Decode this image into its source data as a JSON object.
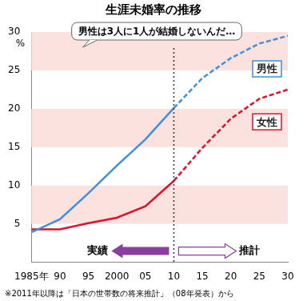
{
  "chart_data": {
    "type": "line",
    "title": "生涯未婚率の推移",
    "categories": [
      "1985年",
      "90",
      "95",
      "2000",
      "05",
      "10",
      "15",
      "20",
      "25",
      "30"
    ],
    "series": [
      {
        "name": "男性",
        "color": "#3d8fe0",
        "line_style": "solid",
        "values": [
          3.9,
          5.6,
          9.0,
          12.6,
          16.0,
          20.1,
          null,
          null,
          null,
          null
        ]
      },
      {
        "name": "男性",
        "color": "#3d8fe0",
        "line_style": "dashed",
        "values": [
          null,
          null,
          null,
          null,
          null,
          20.1,
          24.0,
          26.6,
          28.5,
          29.5
        ]
      },
      {
        "name": "女性",
        "color": "#e0102a",
        "line_style": "solid",
        "values": [
          4.3,
          4.3,
          5.1,
          5.8,
          7.3,
          10.6,
          null,
          null,
          null,
          null
        ]
      },
      {
        "name": "女性",
        "color": "#e0102a",
        "line_style": "dashed",
        "values": [
          null,
          null,
          null,
          null,
          null,
          10.6,
          14.9,
          18.7,
          21.3,
          22.5
        ]
      }
    ],
    "ylim": [
      0,
      30
    ],
    "yticks": [
      5,
      10,
      15,
      20,
      25,
      30
    ],
    "grid": true,
    "annotations": {
      "unit": "%",
      "bubble": "男性は3人に1人が結婚しないんだ…",
      "male_label": "男性",
      "female_label": "女性",
      "actual": "実績",
      "projection": "推計",
      "note": "※2011年以降は「日本の世帯数の将来推計」（08年発表）から"
    }
  }
}
